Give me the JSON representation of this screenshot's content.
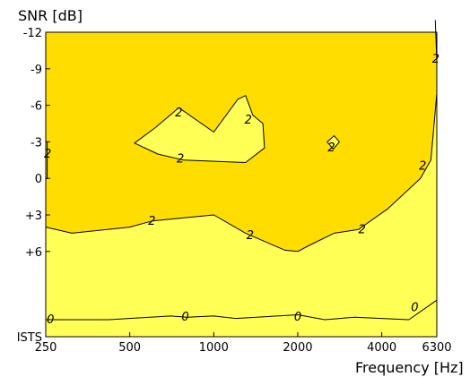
{
  "chart_data": {
    "type": "contour",
    "xlabel": "Frequency [Hz]",
    "ylabel": "SNR [dB]",
    "x_scale": "log",
    "xlim": [
      250,
      6300
    ],
    "ylim": [
      -12,
      13
    ],
    "y_inverted": true,
    "x_ticks": [
      {
        "value": 250,
        "label": "250"
      },
      {
        "value": 500,
        "label": "500"
      },
      {
        "value": 1000,
        "label": "1000"
      },
      {
        "value": 2000,
        "label": "2000"
      },
      {
        "value": 4000,
        "label": "4000"
      },
      {
        "value": 6300,
        "label": "6300"
      }
    ],
    "y_ticks": [
      {
        "value": -12,
        "label": "-12"
      },
      {
        "value": -9,
        "label": "-9"
      },
      {
        "value": -6,
        "label": "-6"
      },
      {
        "value": -3,
        "label": "-3"
      },
      {
        "value": 0,
        "label": "0"
      },
      {
        "value": 3,
        "label": "+3"
      },
      {
        "value": 6,
        "label": "+6"
      },
      {
        "value": 13,
        "label": "ISTS"
      }
    ],
    "colors": {
      "level_low": "#ffff55",
      "level_high": "#ffdd00",
      "line": "#000000"
    },
    "regions": [
      {
        "level": "0-2",
        "color": "#ffff55",
        "points": [
          [
            250,
            4.0
          ],
          [
            310,
            4.5
          ],
          [
            500,
            4.0
          ],
          [
            600,
            3.5
          ],
          [
            1000,
            3.0
          ],
          [
            1300,
            4.5
          ],
          [
            1800,
            5.9
          ],
          [
            2000,
            6.0
          ],
          [
            2200,
            5.5
          ],
          [
            2700,
            4.5
          ],
          [
            3300,
            4.2
          ],
          [
            4200,
            2.5
          ],
          [
            5500,
            0
          ],
          [
            6000,
            -1.5
          ],
          [
            6300,
            -7
          ],
          [
            6300,
            13
          ],
          [
            250,
            13
          ]
        ]
      },
      {
        "level": "0-2",
        "color": "#ffff55",
        "points": [
          [
            520,
            -2.9
          ],
          [
            620,
            -4.2
          ],
          [
            750,
            -5.8
          ],
          [
            1000,
            -3.8
          ],
          [
            1220,
            -6.5
          ],
          [
            1300,
            -6.8
          ],
          [
            1380,
            -5.2
          ],
          [
            1500,
            -4.5
          ],
          [
            1520,
            -2.5
          ],
          [
            1300,
            -1.3
          ],
          [
            780,
            -1.5
          ],
          [
            630,
            -2.0
          ]
        ]
      },
      {
        "level": "0-2",
        "color": "#ffff55",
        "points": [
          [
            2550,
            -3.0
          ],
          [
            2700,
            -3.5
          ],
          [
            2820,
            -3.0
          ],
          [
            2680,
            -2.4
          ]
        ]
      },
      {
        "level": "0-2",
        "color": "#ffff55",
        "points": [
          [
            250,
            -3.0
          ],
          [
            253,
            -3.0
          ],
          [
            253,
            0
          ],
          [
            250,
            0
          ]
        ]
      }
    ],
    "contours": [
      {
        "level": 2,
        "label": "2",
        "points": [
          [
            250,
            4.0
          ],
          [
            310,
            4.5
          ],
          [
            500,
            4.0
          ],
          [
            600,
            3.5
          ],
          [
            1000,
            3.0
          ],
          [
            1300,
            4.5
          ],
          [
            1800,
            5.9
          ],
          [
            2000,
            6.0
          ],
          [
            2200,
            5.5
          ],
          [
            2700,
            4.5
          ],
          [
            3300,
            4.2
          ],
          [
            4200,
            2.5
          ],
          [
            5500,
            0
          ],
          [
            6000,
            -1.5
          ],
          [
            6300,
            -7
          ]
        ],
        "labels_at": [
          [
            600,
            3.5
          ],
          [
            1350,
            4.7
          ],
          [
            3400,
            4.2
          ],
          [
            5600,
            -1.0
          ]
        ]
      },
      {
        "level": 2,
        "label": "2",
        "closed": true,
        "points": [
          [
            520,
            -2.9
          ],
          [
            620,
            -4.2
          ],
          [
            750,
            -5.8
          ],
          [
            1000,
            -3.8
          ],
          [
            1220,
            -6.5
          ],
          [
            1300,
            -6.8
          ],
          [
            1380,
            -5.2
          ],
          [
            1500,
            -4.5
          ],
          [
            1520,
            -2.5
          ],
          [
            1300,
            -1.3
          ],
          [
            780,
            -1.5
          ],
          [
            630,
            -2.0
          ]
        ],
        "labels_at": [
          [
            750,
            -5.4
          ],
          [
            1330,
            -4.8
          ],
          [
            760,
            -1.6
          ]
        ]
      },
      {
        "level": 2,
        "label": "2",
        "closed": true,
        "points": [
          [
            2550,
            -3.0
          ],
          [
            2700,
            -3.5
          ],
          [
            2820,
            -3.0
          ],
          [
            2680,
            -2.4
          ]
        ],
        "labels_at": [
          [
            2640,
            -2.5
          ]
        ]
      },
      {
        "level": 2,
        "label": "2",
        "points": [
          [
            250,
            -3.0
          ],
          [
            253,
            -3.0
          ],
          [
            253,
            0
          ],
          [
            250,
            0
          ]
        ],
        "labels_at": [
          [
            254,
            -2.0
          ]
        ]
      },
      {
        "level": 2,
        "label": "2",
        "points": [
          [
            6220,
            -13
          ],
          [
            6300,
            -9.5
          ]
        ],
        "labels_at": [
          [
            6250,
            -9.8
          ]
        ]
      },
      {
        "level": 0,
        "label": "0",
        "points": [
          [
            250,
            11.6
          ],
          [
            420,
            11.6
          ],
          [
            700,
            11.3
          ],
          [
            800,
            11.4
          ],
          [
            1000,
            11.3
          ],
          [
            1200,
            11.5
          ],
          [
            2000,
            11.2
          ],
          [
            2500,
            11.6
          ],
          [
            3200,
            11.4
          ],
          [
            5000,
            11.6
          ],
          [
            6300,
            10
          ]
        ],
        "labels_at": [
          [
            260,
            11.6
          ],
          [
            790,
            11.4
          ],
          [
            2000,
            11.4
          ],
          [
            5250,
            10.6
          ]
        ]
      }
    ]
  }
}
